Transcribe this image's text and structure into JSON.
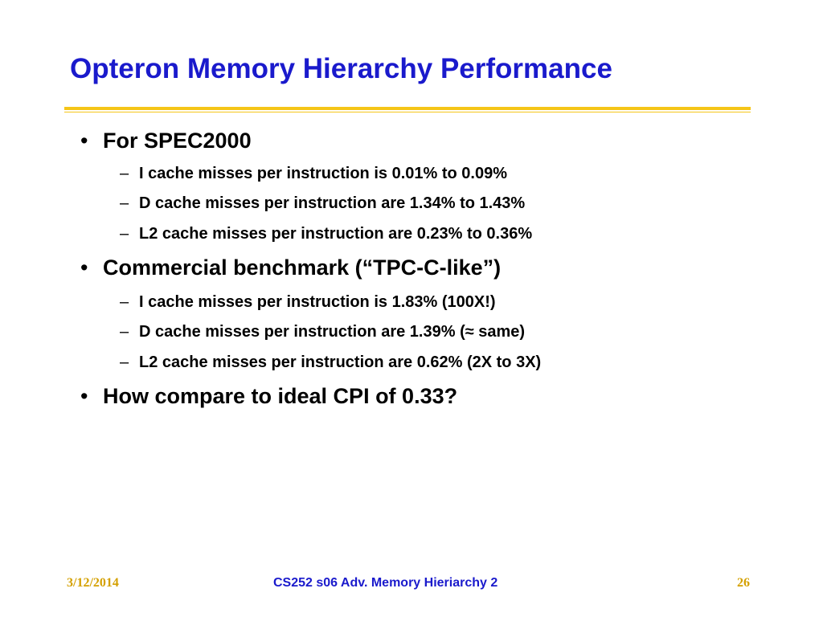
{
  "slide": {
    "title": "Opteron Memory Hierarchy Performance",
    "bullets": [
      {
        "text": "For SPEC2000",
        "sub": [
          "I cache misses per instruction is 0.01% to 0.09%",
          "D cache misses per instruction are 1.34% to 1.43%",
          "L2 cache misses per instruction are 0.23% to 0.36%"
        ]
      },
      {
        "text": "Commercial benchmark (“TPC-C-like”)",
        "sub": [
          "I cache misses per instruction is 1.83%  (100X!)",
          "D cache misses per instruction are 1.39% (≈ same)",
          "L2 cache misses per instruction are 0.62% (2X to 3X)"
        ]
      },
      {
        "text": "How compare to ideal CPI of 0.33?",
        "sub": []
      }
    ],
    "bullet_glyph": "•",
    "sub_glyph": "–"
  },
  "footer": {
    "date": "3/12/2014",
    "course": "CS252 s06 Adv. Memory Hieriarchy 2",
    "page": "26"
  },
  "colors": {
    "title": "#1a1acc",
    "rule": "#f5c518",
    "footer_accent": "#d4a000"
  }
}
